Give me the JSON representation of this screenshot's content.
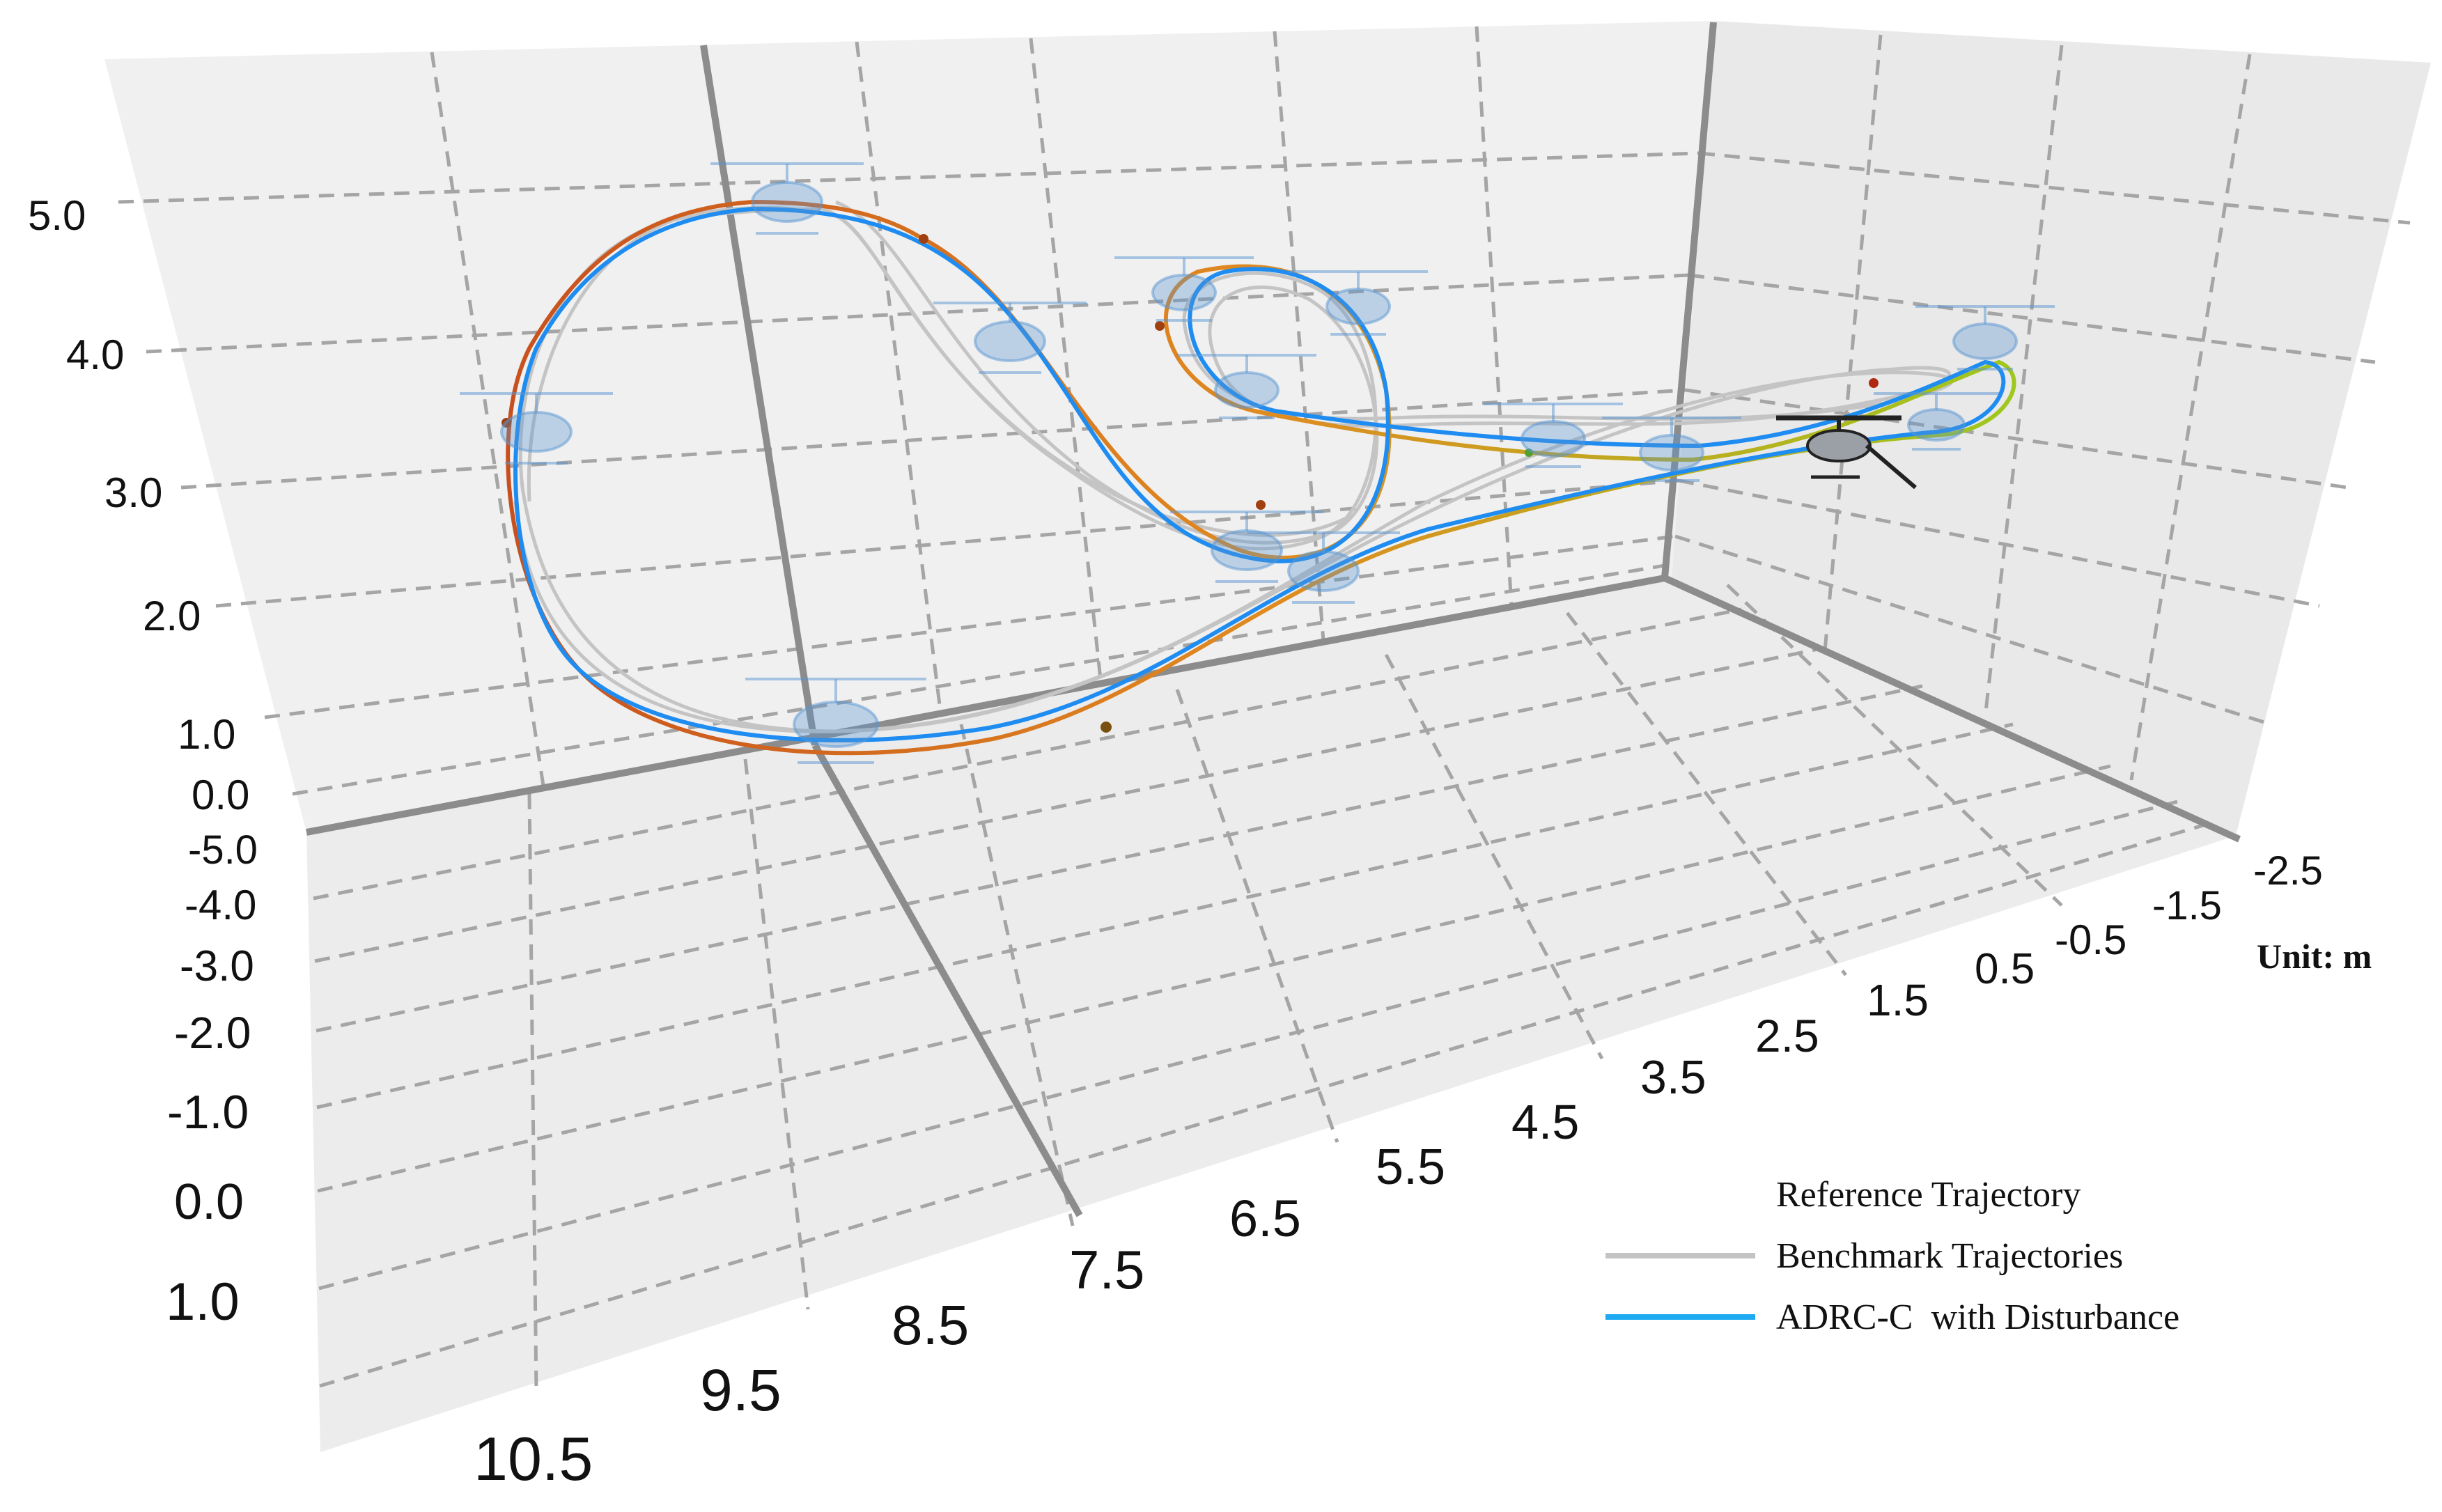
{
  "chart_data": {
    "type": "line",
    "projection": "3d",
    "z_axis": {
      "ticks": [
        "5.0",
        "4.0",
        "3.0",
        "2.0",
        "1.0",
        "0.0"
      ]
    },
    "y_axis": {
      "ticks": [
        "-5.0",
        "-4.0",
        "-3.0",
        "-2.0",
        "-1.0",
        "0.0",
        "1.0"
      ]
    },
    "x_axis": {
      "ticks": [
        "-2.5",
        "-1.5",
        "-0.5",
        "0.5",
        "1.5",
        "2.5",
        "3.5",
        "4.5",
        "5.5",
        "6.5",
        "7.5",
        "8.5",
        "9.5",
        "10.5"
      ]
    },
    "unit_label": "Unit: m",
    "grid": true,
    "legend_position": "bottom-right",
    "series": [
      {
        "name": "Reference Trajectory",
        "color": "#d2691e",
        "color_start": "#3cc83c",
        "color_end": "#c8501e"
      },
      {
        "name": "Benchmark Trajectories",
        "color": "#c4c4c4"
      },
      {
        "name": "ADRC-C  with Disturbance",
        "color": "#1e8cf0"
      }
    ],
    "trajectory_shape": "figure-eight loop with helicopter markers along path",
    "helicopter_marker_color": "#5a96d2",
    "current_helicopter_color": "#222222"
  }
}
